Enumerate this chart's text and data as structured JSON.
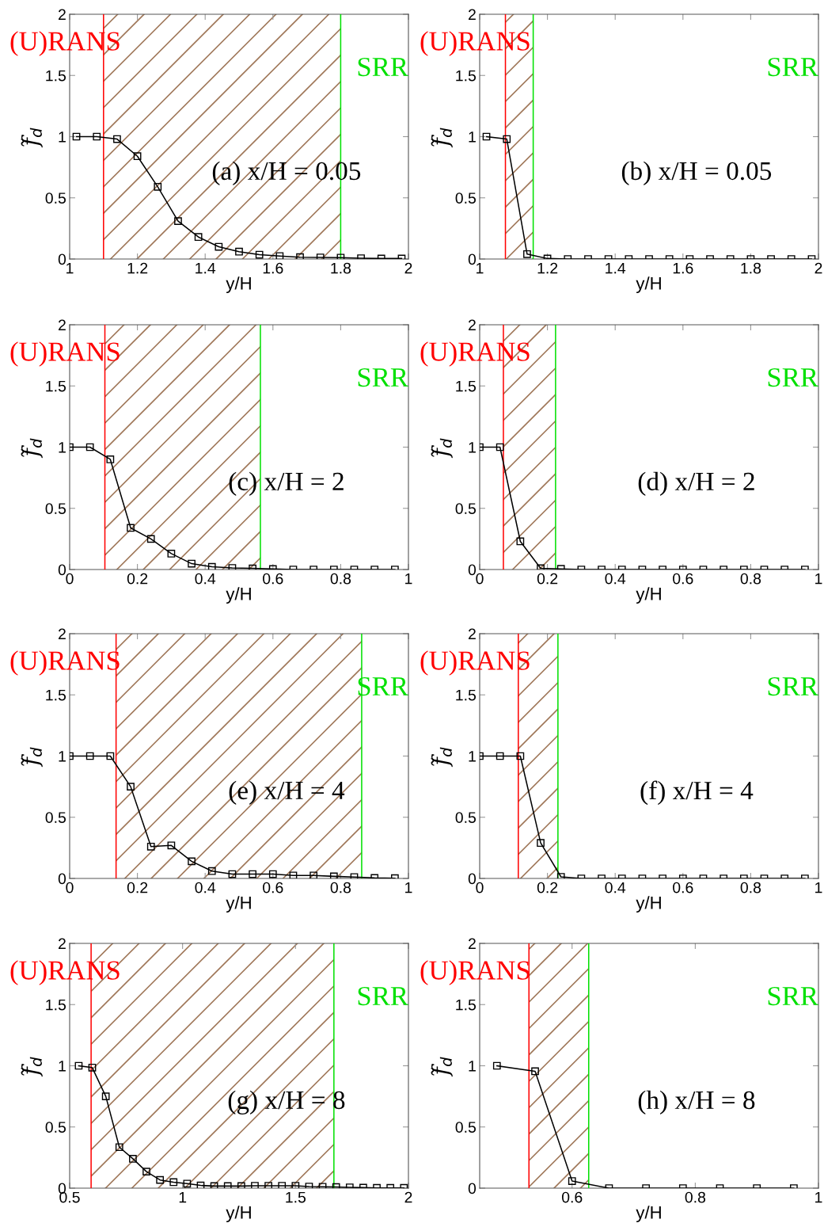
{
  "chart_data": [
    {
      "type": "line",
      "annotations": [
        "(a) x/H = 0.05"
      ],
      "xlabel": "y/H",
      "ylabel": "f̃$_{d}$",
      "marker": "square",
      "line_style": "solid",
      "x": [
        1.02,
        1.08,
        1.14,
        1.2,
        1.26,
        1.32,
        1.38,
        1.44,
        1.5,
        1.56,
        1.62,
        1.68,
        1.74,
        1.8,
        1.86,
        1.92,
        1.98
      ],
      "series": [
        {
          "color": "#000000",
          "values": [
            1.0,
            1.0,
            0.98,
            0.84,
            0.59,
            0.31,
            0.18,
            0.1,
            0.06,
            0.035,
            0.024,
            0.015,
            0.013,
            0.011,
            0.006,
            0.004,
            0.004
          ]
        }
      ],
      "ref_lines": [
        {
          "axis": "x",
          "value": 1.1,
          "label": "(U)RANS",
          "color": "#ff0000"
        },
        {
          "axis": "x",
          "value": 1.8,
          "label": "SRR",
          "color": "#00e000"
        }
      ],
      "bands": [
        {
          "axis": "x",
          "from": 1.1,
          "to": 1.8,
          "color": "#a0785a"
        }
      ],
      "xlim": [
        1,
        2
      ],
      "xticks": [
        1,
        1.2,
        1.4,
        1.6,
        1.8,
        2
      ],
      "ylim": [
        0,
        2
      ],
      "yticks": [
        0,
        0.5,
        1,
        1.5,
        2
      ]
    },
    {
      "type": "line",
      "annotations": [
        "(b) x/H = 0.05"
      ],
      "xlabel": "y/H",
      "ylabel": "f̃$_{d}$",
      "marker": "square",
      "line_style": "solid",
      "x": [
        1.02,
        1.08,
        1.14,
        1.2,
        1.26,
        1.32,
        1.38,
        1.44,
        1.5,
        1.56,
        1.62,
        1.68,
        1.74,
        1.8,
        1.86,
        1.92,
        1.98
      ],
      "series": [
        {
          "color": "#000000",
          "values": [
            1.0,
            0.98,
            0.04,
            0.004,
            0,
            0,
            0,
            0,
            0,
            0,
            0,
            0,
            0,
            0,
            0,
            0,
            0
          ]
        }
      ],
      "ref_lines": [
        {
          "axis": "x",
          "value": 1.076,
          "label": "(U)RANS",
          "color": "#ff0000"
        },
        {
          "axis": "x",
          "value": 1.158,
          "label": "SRR",
          "color": "#00e000"
        }
      ],
      "bands": [
        {
          "axis": "x",
          "from": 1.076,
          "to": 1.158,
          "color": "#a0785a"
        }
      ],
      "xlim": [
        1,
        2
      ],
      "xticks": [
        1,
        1.2,
        1.4,
        1.6,
        1.8,
        2
      ],
      "ylim": [
        0,
        2
      ],
      "yticks": [
        0,
        0.5,
        1,
        1.5,
        2
      ]
    },
    {
      "type": "line",
      "annotations": [
        "(c) x/H = 2"
      ],
      "xlabel": "y/H",
      "ylabel": "f̃$_{d}$",
      "marker": "square",
      "line_style": "solid",
      "x": [
        0,
        0.06,
        0.12,
        0.18,
        0.24,
        0.3,
        0.36,
        0.42,
        0.48,
        0.54,
        0.6,
        0.66,
        0.72,
        0.78,
        0.84,
        0.9,
        0.96
      ],
      "series": [
        {
          "color": "#000000",
          "values": [
            1.0,
            1.0,
            0.9,
            0.34,
            0.25,
            0.13,
            0.048,
            0.022,
            0.013,
            0.009,
            0.004,
            0,
            0,
            0,
            0,
            0,
            0
          ]
        }
      ],
      "ref_lines": [
        {
          "axis": "x",
          "value": 0.104,
          "label": "(U)RANS",
          "color": "#ff0000"
        },
        {
          "axis": "x",
          "value": 0.563,
          "label": "SRR",
          "color": "#00e000"
        }
      ],
      "bands": [
        {
          "axis": "x",
          "from": 0.104,
          "to": 0.563,
          "color": "#a0785a"
        }
      ],
      "xlim": [
        0,
        1
      ],
      "xticks": [
        0,
        0.2,
        0.4,
        0.6,
        0.8,
        1
      ],
      "ylim": [
        0,
        2
      ],
      "yticks": [
        0,
        0.5,
        1,
        1.5,
        2
      ]
    },
    {
      "type": "line",
      "annotations": [
        "(d) x/H = 2"
      ],
      "xlabel": "y/H",
      "ylabel": "f̃$_{d}$",
      "marker": "square",
      "line_style": "solid",
      "x": [
        0,
        0.06,
        0.12,
        0.18,
        0.24,
        0.3,
        0.36,
        0.42,
        0.48,
        0.54,
        0.6,
        0.66,
        0.72,
        0.78,
        0.84,
        0.9,
        0.96
      ],
      "series": [
        {
          "color": "#000000",
          "values": [
            1.0,
            1.0,
            0.23,
            0.01,
            0.005,
            0,
            0,
            0,
            0,
            0,
            0,
            0,
            0,
            0,
            0,
            0,
            0
          ]
        }
      ],
      "ref_lines": [
        {
          "axis": "x",
          "value": 0.07,
          "label": "(U)RANS",
          "color": "#ff0000"
        },
        {
          "axis": "x",
          "value": 0.224,
          "label": "SRR",
          "color": "#00e000"
        }
      ],
      "bands": [
        {
          "axis": "x",
          "from": 0.07,
          "to": 0.224,
          "color": "#a0785a"
        }
      ],
      "xlim": [
        0,
        1
      ],
      "xticks": [
        0,
        0.2,
        0.4,
        0.6,
        0.8,
        1
      ],
      "ylim": [
        0,
        2
      ],
      "yticks": [
        0,
        0.5,
        1,
        1.5,
        2
      ]
    },
    {
      "type": "line",
      "annotations": [
        "(e) x/H = 4"
      ],
      "xlabel": "y/H",
      "ylabel": "f̃$_{d}$",
      "marker": "square",
      "line_style": "solid",
      "x": [
        0,
        0.06,
        0.12,
        0.18,
        0.24,
        0.3,
        0.36,
        0.42,
        0.48,
        0.54,
        0.6,
        0.66,
        0.72,
        0.78,
        0.84,
        0.9,
        0.96
      ],
      "series": [
        {
          "color": "#000000",
          "values": [
            1.0,
            1.0,
            1.0,
            0.75,
            0.26,
            0.27,
            0.14,
            0.06,
            0.035,
            0.035,
            0.035,
            0.024,
            0.024,
            0.017,
            0.011,
            0.004,
            0.002
          ]
        }
      ],
      "ref_lines": [
        {
          "axis": "x",
          "value": 0.137,
          "label": "(U)RANS",
          "color": "#ff0000"
        },
        {
          "axis": "x",
          "value": 0.862,
          "label": "SRR",
          "color": "#00e000"
        }
      ],
      "bands": [
        {
          "axis": "x",
          "from": 0.137,
          "to": 0.862,
          "color": "#a0785a"
        }
      ],
      "xlim": [
        0,
        1
      ],
      "xticks": [
        0,
        0.2,
        0.4,
        0.6,
        0.8,
        1
      ],
      "ylim": [
        0,
        2
      ],
      "yticks": [
        0,
        0.5,
        1,
        1.5,
        2
      ]
    },
    {
      "type": "line",
      "annotations": [
        "(f) x/H = 4"
      ],
      "xlabel": "y/H",
      "ylabel": "f̃$_{d}$",
      "marker": "square",
      "line_style": "solid",
      "x": [
        0,
        0.06,
        0.12,
        0.18,
        0.24,
        0.3,
        0.36,
        0.42,
        0.48,
        0.54,
        0.6,
        0.66,
        0.72,
        0.78,
        0.84,
        0.9,
        0.96
      ],
      "series": [
        {
          "color": "#000000",
          "values": [
            1.0,
            1.0,
            1.0,
            0.29,
            0.013,
            0,
            0,
            0,
            0,
            0,
            0,
            0,
            0,
            0,
            0,
            0,
            0
          ]
        }
      ],
      "ref_lines": [
        {
          "axis": "x",
          "value": 0.114,
          "label": "(U)RANS",
          "color": "#ff0000"
        },
        {
          "axis": "x",
          "value": 0.231,
          "label": "SRR",
          "color": "#00e000"
        }
      ],
      "bands": [
        {
          "axis": "x",
          "from": 0.114,
          "to": 0.231,
          "color": "#a0785a"
        }
      ],
      "xlim": [
        0,
        1
      ],
      "xticks": [
        0,
        0.2,
        0.4,
        0.6,
        0.8,
        1
      ],
      "ylim": [
        0,
        2
      ],
      "yticks": [
        0,
        0.5,
        1,
        1.5,
        2
      ]
    },
    {
      "type": "line",
      "annotations": [
        "(g) x/H = 8"
      ],
      "xlabel": "y/H",
      "ylabel": "f̃$_{d}$",
      "marker": "square",
      "line_style": "solid",
      "x": [
        0.54,
        0.6,
        0.66,
        0.72,
        0.78,
        0.84,
        0.9,
        0.96,
        1.02,
        1.08,
        1.14,
        1.2,
        1.26,
        1.32,
        1.38,
        1.44,
        1.5,
        1.56,
        1.62,
        1.68,
        1.74,
        1.8,
        1.86,
        1.92,
        1.98
      ],
      "series": [
        {
          "color": "#000000",
          "values": [
            1.0,
            0.985,
            0.75,
            0.335,
            0.24,
            0.135,
            0.067,
            0.049,
            0.037,
            0.022,
            0.017,
            0.017,
            0.017,
            0.019,
            0.019,
            0.019,
            0.019,
            0.013,
            0.011,
            0.009,
            0.006,
            0.004,
            0.002,
            0.002,
            0.002
          ]
        }
      ],
      "ref_lines": [
        {
          "axis": "x",
          "value": 0.595,
          "label": "(U)RANS",
          "color": "#ff0000"
        },
        {
          "axis": "x",
          "value": 1.67,
          "label": "SRR",
          "color": "#00e000"
        }
      ],
      "bands": [
        {
          "axis": "x",
          "from": 0.595,
          "to": 1.67,
          "color": "#a0785a"
        }
      ],
      "xlim": [
        0.5,
        2
      ],
      "xticks": [
        0.5,
        1,
        1.5,
        2
      ],
      "ylim": [
        0,
        2
      ],
      "yticks": [
        0,
        0.5,
        1,
        1.5,
        2
      ]
    },
    {
      "type": "line",
      "annotations": [
        "(h) x/H = 8"
      ],
      "xlabel": "y/H",
      "ylabel": "f̃$_{d}$",
      "marker": "square",
      "line_style": "solid",
      "x": [
        0.478,
        0.54,
        0.6,
        0.66,
        0.72,
        0.78,
        0.84,
        0.9,
        0.96
      ],
      "series": [
        {
          "color": "#000000",
          "values": [
            1.0,
            0.955,
            0.058,
            0,
            0,
            0,
            0,
            0,
            0
          ]
        }
      ],
      "ref_lines": [
        {
          "axis": "x",
          "value": 0.53,
          "label": "(U)RANS",
          "color": "#ff0000"
        },
        {
          "axis": "x",
          "value": 0.627,
          "label": "SRR",
          "color": "#00e000"
        }
      ],
      "bands": [
        {
          "axis": "x",
          "from": 0.53,
          "to": 0.627,
          "color": "#a0785a"
        }
      ],
      "xlim": [
        0.45,
        1
      ],
      "xticks": [
        0.6,
        0.8,
        1
      ],
      "ylim": [
        0,
        2
      ],
      "yticks": [
        0,
        0.5,
        1,
        1.5,
        2
      ]
    }
  ]
}
